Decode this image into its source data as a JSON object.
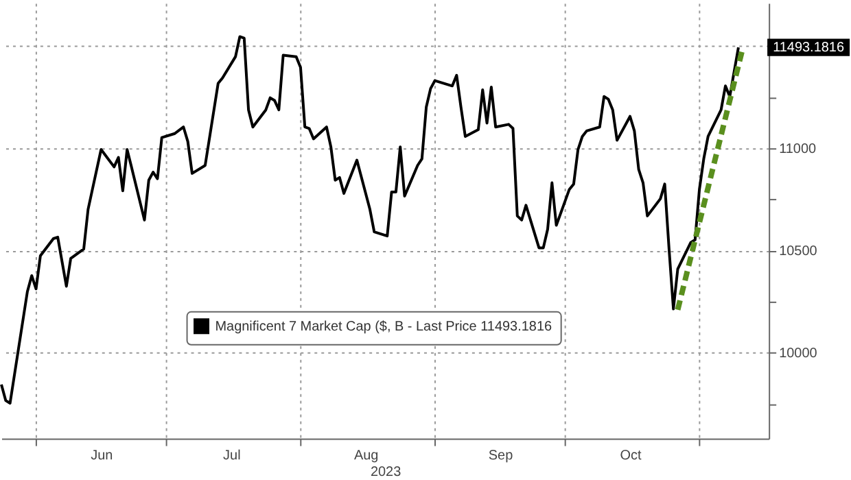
{
  "chart_data": {
    "type": "line",
    "xlabel": "2023",
    "xlim": [
      "2023-05-24",
      "2023-11-17"
    ],
    "xticks": [
      {
        "value": "2023-06-01",
        "label": null
      },
      {
        "value": "2023-06-16",
        "label": "Jun"
      },
      {
        "value": "2023-07-01",
        "label": null
      },
      {
        "value": "2023-07-16",
        "label": "Jul"
      },
      {
        "value": "2023-08-01",
        "label": null
      },
      {
        "value": "2023-08-16",
        "label": "Aug"
      },
      {
        "value": "2023-09-01",
        "label": null
      },
      {
        "value": "2023-09-16",
        "label": "Sep"
      },
      {
        "value": "2023-10-01",
        "label": null
      },
      {
        "value": "2023-10-16",
        "label": "Oct"
      },
      {
        "value": "2023-11-01",
        "label": null
      }
    ],
    "ylim": [
      9580,
      11710
    ],
    "yticks": [
      {
        "value": 9750,
        "label": null
      },
      10000,
      {
        "value": 10250,
        "label": null
      },
      10500,
      {
        "value": 10750,
        "label": null
      },
      11000,
      {
        "value": 11250,
        "label": null
      },
      {
        "value": 11500,
        "label": null
      }
    ],
    "grid": true,
    "legend": "bottom",
    "marker": "none",
    "annotations": [
      {
        "text": "11493.1816",
        "x": "2023-11-10",
        "y": 11493.1816
      }
    ],
    "series": [
      {
        "name": "Magnificent 7 Market Cap ($, B - Last Price 11493.1816",
        "color": "#000000",
        "line_style": "solid",
        "x": [
          "2023-05-24",
          "2023-05-25",
          "2023-05-26",
          "2023-05-30",
          "2023-05-31",
          "2023-06-01",
          "2023-06-02",
          "2023-06-05",
          "2023-06-06",
          "2023-06-08",
          "2023-06-09",
          "2023-06-12",
          "2023-06-13",
          "2023-06-14",
          "2023-06-16",
          "2023-06-19",
          "2023-06-20",
          "2023-06-21",
          "2023-06-22",
          "2023-06-23",
          "2023-06-26",
          "2023-06-27",
          "2023-06-28",
          "2023-06-29",
          "2023-06-30",
          "2023-07-03",
          "2023-07-05",
          "2023-07-06",
          "2023-07-07",
          "2023-07-10",
          "2023-07-13",
          "2023-07-14",
          "2023-07-17",
          "2023-07-18",
          "2023-07-19",
          "2023-07-20",
          "2023-07-21",
          "2023-07-24",
          "2023-07-25",
          "2023-07-26",
          "2023-07-27",
          "2023-07-28",
          "2023-07-31",
          "2023-08-01",
          "2023-08-02",
          "2023-08-03",
          "2023-08-04",
          "2023-08-07",
          "2023-08-08",
          "2023-08-09",
          "2023-08-10",
          "2023-08-11",
          "2023-08-14",
          "2023-08-17",
          "2023-08-18",
          "2023-08-21",
          "2023-08-22",
          "2023-08-23",
          "2023-08-24",
          "2023-08-25",
          "2023-08-28",
          "2023-08-29",
          "2023-08-30",
          "2023-08-31",
          "2023-09-01",
          "2023-09-05",
          "2023-09-06",
          "2023-09-07",
          "2023-09-08",
          "2023-09-11",
          "2023-09-12",
          "2023-09-13",
          "2023-09-14",
          "2023-09-15",
          "2023-09-18",
          "2023-09-19",
          "2023-09-20",
          "2023-09-21",
          "2023-09-22",
          "2023-09-25",
          "2023-09-26",
          "2023-09-27",
          "2023-09-28",
          "2023-09-29",
          "2023-10-02",
          "2023-10-03",
          "2023-10-04",
          "2023-10-05",
          "2023-10-06",
          "2023-10-09",
          "2023-10-10",
          "2023-10-11",
          "2023-10-12",
          "2023-10-13",
          "2023-10-16",
          "2023-10-17",
          "2023-10-18",
          "2023-10-19",
          "2023-10-20",
          "2023-10-23",
          "2023-10-24",
          "2023-10-25",
          "2023-10-26",
          "2023-10-27",
          "2023-10-30",
          "2023-10-31",
          "2023-11-01",
          "2023-11-02",
          "2023-11-03",
          "2023-11-06",
          "2023-11-07",
          "2023-11-08",
          "2023-11-10"
        ],
        "values": [
          9844,
          9766,
          9753,
          10299,
          10377,
          10312,
          10474,
          10558,
          10565,
          10325,
          10461,
          10507,
          10701,
          10799,
          10994,
          10909,
          10955,
          10792,
          10994,
          10909,
          10649,
          10844,
          10883,
          10851,
          11052,
          11072,
          11104,
          11033,
          10877,
          10916,
          11318,
          11344,
          11448,
          11546,
          11539,
          11188,
          11104,
          11188,
          11247,
          11234,
          11188,
          11455,
          11448,
          11396,
          11104,
          11097,
          11046,
          11104,
          11007,
          10844,
          10857,
          10779,
          10942,
          10701,
          10591,
          10571,
          10786,
          10786,
          11007,
          10766,
          10916,
          10948,
          11201,
          11292,
          11331,
          11305,
          11357,
          11201,
          11058,
          11091,
          11286,
          11123,
          11299,
          11104,
          11117,
          11097,
          10669,
          10649,
          10721,
          10513,
          10513,
          10604,
          10831,
          10623,
          10799,
          10825,
          10994,
          11058,
          11085,
          11104,
          11253,
          11240,
          11188,
          11039,
          11156,
          11085,
          10896,
          10831,
          10669,
          10753,
          10825,
          10507,
          10214,
          10409,
          10539,
          10552,
          10799,
          10948,
          11058,
          11188,
          11305,
          11253,
          11493.1816
        ]
      },
      {
        "type": "line",
        "color": "#5a8f1e",
        "line_style": "dashed",
        "x": [
          "2023-10-27",
          "2023-11-11"
        ],
        "values": [
          10210,
          11490
        ]
      }
    ]
  }
}
